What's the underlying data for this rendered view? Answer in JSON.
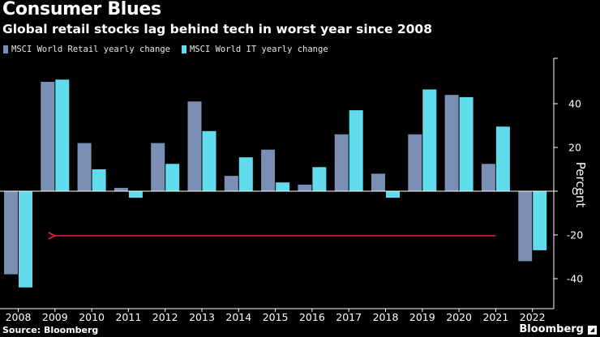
{
  "title": "Consumer Blues",
  "subtitle": "Global retail stocks lag behind tech in worst year since 2008",
  "source": "Source: Bloomberg",
  "brand": "Bloomberg",
  "colors": {
    "retail": "#7b8fb5",
    "it": "#61dcec",
    "arrow": "#e8243c",
    "background": "#000000",
    "text": "#ffffff"
  },
  "chart_data": {
    "type": "bar",
    "title": "Consumer Blues",
    "subtitle": "Global retail stocks lag behind tech in worst year since 2008",
    "categories": [
      "2008",
      "2009",
      "2010",
      "2011",
      "2012",
      "2013",
      "2014",
      "2015",
      "2016",
      "2017",
      "2018",
      "2019",
      "2020",
      "2021",
      "2022"
    ],
    "series": [
      {
        "name": "MSCI World Retail yearly change",
        "values": [
          -38,
          50,
          22,
          1.5,
          22,
          41,
          7,
          19,
          3,
          26,
          8,
          26,
          44,
          12.5,
          -32
        ]
      },
      {
        "name": "MSCI World IT yearly change",
        "values": [
          -44,
          51,
          10,
          -3,
          12.5,
          27.5,
          15.5,
          4,
          11,
          37,
          -3,
          46.5,
          43,
          29.5,
          -27
        ]
      }
    ],
    "xlabel": "",
    "ylabel": "Percent",
    "ylim": [
      -50,
      60
    ],
    "yticks": [
      -40,
      -20,
      0,
      20,
      40
    ],
    "ytick_labels": [
      "-40",
      "-20",
      "0",
      "20",
      "40"
    ],
    "legend_position": "top-left",
    "annotation": {
      "type": "arrow",
      "from_category": "2021",
      "to_category": "2009",
      "at_value": -20
    }
  }
}
